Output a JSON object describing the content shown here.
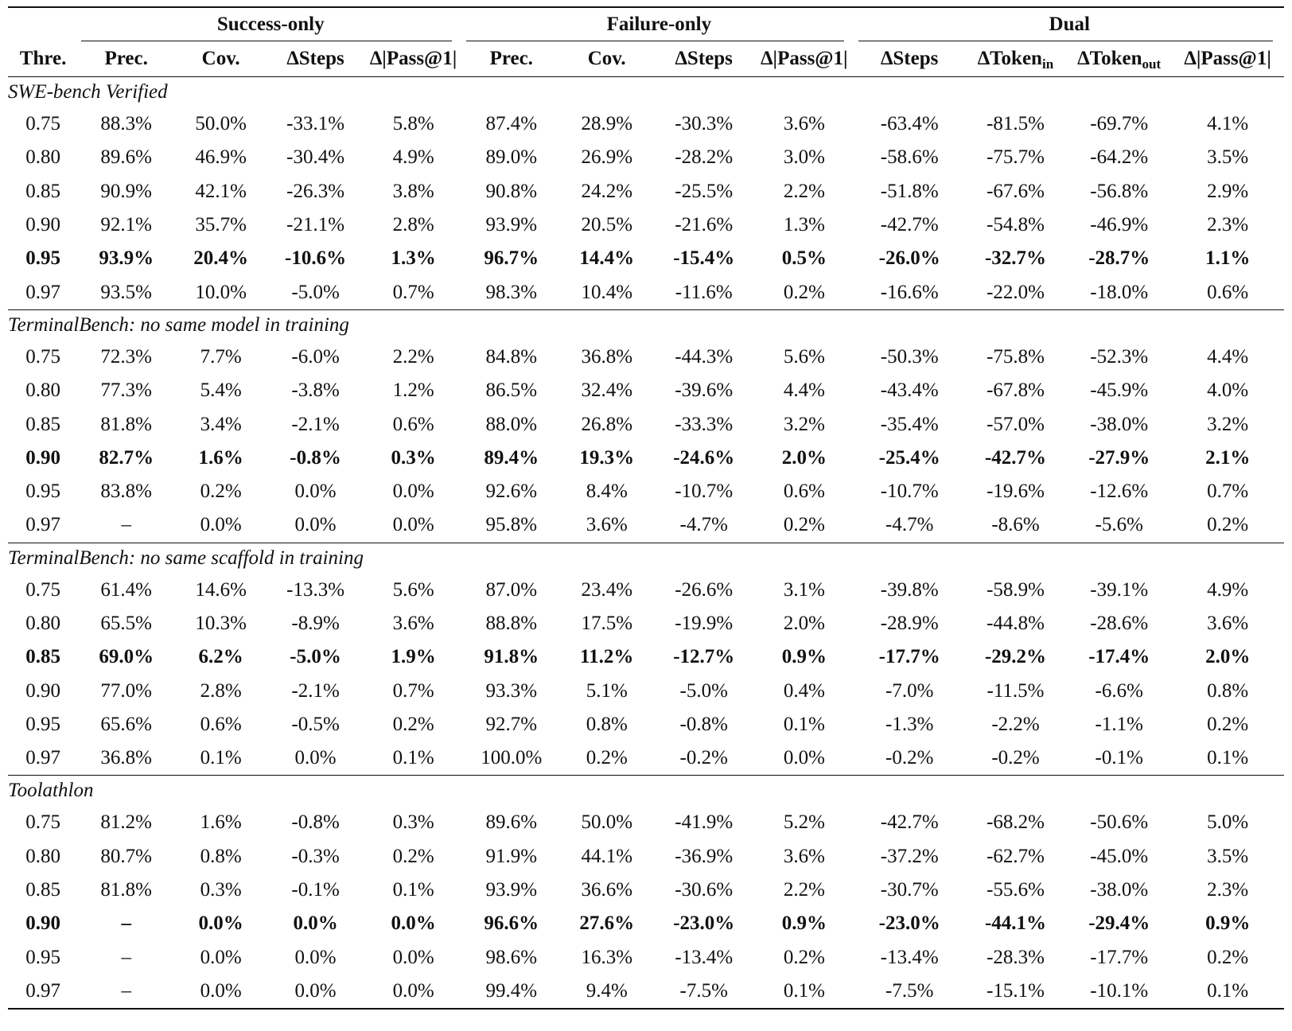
{
  "groups": [
    "Success-only",
    "Failure-only",
    "Dual"
  ],
  "columns": {
    "thre": "Thre.",
    "s_prec": "Prec.",
    "s_cov": "Cov.",
    "s_steps": "∆Steps",
    "s_pass": "∆|Pass@1|",
    "f_prec": "Prec.",
    "f_cov": "Cov.",
    "f_steps": "∆Steps",
    "f_pass": "∆|Pass@1|",
    "d_steps": "∆Steps",
    "d_tin_base": "∆Token",
    "d_tin_sub": "in",
    "d_tout_base": "∆Token",
    "d_tout_sub": "out",
    "d_pass": "∆|Pass@1|"
  },
  "sections": [
    {
      "title": "SWE-bench Verified",
      "rows": [
        [
          "0.75",
          "88.3%",
          "50.0%",
          "-33.1%",
          "5.8%",
          "87.4%",
          "28.9%",
          "-30.3%",
          "3.6%",
          "-63.4%",
          "-81.5%",
          "-69.7%",
          "4.1%"
        ],
        [
          "0.80",
          "89.6%",
          "46.9%",
          "-30.4%",
          "4.9%",
          "89.0%",
          "26.9%",
          "-28.2%",
          "3.0%",
          "-58.6%",
          "-75.7%",
          "-64.2%",
          "3.5%"
        ],
        [
          "0.85",
          "90.9%",
          "42.1%",
          "-26.3%",
          "3.8%",
          "90.8%",
          "24.2%",
          "-25.5%",
          "2.2%",
          "-51.8%",
          "-67.6%",
          "-56.8%",
          "2.9%"
        ],
        [
          "0.90",
          "92.1%",
          "35.7%",
          "-21.1%",
          "2.8%",
          "93.9%",
          "20.5%",
          "-21.6%",
          "1.3%",
          "-42.7%",
          "-54.8%",
          "-46.9%",
          "2.3%"
        ],
        [
          "0.95",
          "93.9%",
          "20.4%",
          "-10.6%",
          "1.3%",
          "96.7%",
          "14.4%",
          "-15.4%",
          "0.5%",
          "-26.0%",
          "-32.7%",
          "-28.7%",
          "1.1%"
        ],
        [
          "0.97",
          "93.5%",
          "10.0%",
          "-5.0%",
          "0.7%",
          "98.3%",
          "10.4%",
          "-11.6%",
          "0.2%",
          "-16.6%",
          "-22.0%",
          "-18.0%",
          "0.6%"
        ]
      ],
      "bold_row": 4
    },
    {
      "title": "TerminalBench: no same model in training",
      "rows": [
        [
          "0.75",
          "72.3%",
          "7.7%",
          "-6.0%",
          "2.2%",
          "84.8%",
          "36.8%",
          "-44.3%",
          "5.6%",
          "-50.3%",
          "-75.8%",
          "-52.3%",
          "4.4%"
        ],
        [
          "0.80",
          "77.3%",
          "5.4%",
          "-3.8%",
          "1.2%",
          "86.5%",
          "32.4%",
          "-39.6%",
          "4.4%",
          "-43.4%",
          "-67.8%",
          "-45.9%",
          "4.0%"
        ],
        [
          "0.85",
          "81.8%",
          "3.4%",
          "-2.1%",
          "0.6%",
          "88.0%",
          "26.8%",
          "-33.3%",
          "3.2%",
          "-35.4%",
          "-57.0%",
          "-38.0%",
          "3.2%"
        ],
        [
          "0.90",
          "82.7%",
          "1.6%",
          "-0.8%",
          "0.3%",
          "89.4%",
          "19.3%",
          "-24.6%",
          "2.0%",
          "-25.4%",
          "-42.7%",
          "-27.9%",
          "2.1%"
        ],
        [
          "0.95",
          "83.8%",
          "0.2%",
          "0.0%",
          "0.0%",
          "92.6%",
          "8.4%",
          "-10.7%",
          "0.6%",
          "-10.7%",
          "-19.6%",
          "-12.6%",
          "0.7%"
        ],
        [
          "0.97",
          "–",
          "0.0%",
          "0.0%",
          "0.0%",
          "95.8%",
          "3.6%",
          "-4.7%",
          "0.2%",
          "-4.7%",
          "-8.6%",
          "-5.6%",
          "0.2%"
        ]
      ],
      "bold_row": 3
    },
    {
      "title": "TerminalBench: no same scaffold in training",
      "rows": [
        [
          "0.75",
          "61.4%",
          "14.6%",
          "-13.3%",
          "5.6%",
          "87.0%",
          "23.4%",
          "-26.6%",
          "3.1%",
          "-39.8%",
          "-58.9%",
          "-39.1%",
          "4.9%"
        ],
        [
          "0.80",
          "65.5%",
          "10.3%",
          "-8.9%",
          "3.6%",
          "88.8%",
          "17.5%",
          "-19.9%",
          "2.0%",
          "-28.9%",
          "-44.8%",
          "-28.6%",
          "3.6%"
        ],
        [
          "0.85",
          "69.0%",
          "6.2%",
          "-5.0%",
          "1.9%",
          "91.8%",
          "11.2%",
          "-12.7%",
          "0.9%",
          "-17.7%",
          "-29.2%",
          "-17.4%",
          "2.0%"
        ],
        [
          "0.90",
          "77.0%",
          "2.8%",
          "-2.1%",
          "0.7%",
          "93.3%",
          "5.1%",
          "-5.0%",
          "0.4%",
          "-7.0%",
          "-11.5%",
          "-6.6%",
          "0.8%"
        ],
        [
          "0.95",
          "65.6%",
          "0.6%",
          "-0.5%",
          "0.2%",
          "92.7%",
          "0.8%",
          "-0.8%",
          "0.1%",
          "-1.3%",
          "-2.2%",
          "-1.1%",
          "0.2%"
        ],
        [
          "0.97",
          "36.8%",
          "0.1%",
          "0.0%",
          "0.1%",
          "100.0%",
          "0.2%",
          "-0.2%",
          "0.0%",
          "-0.2%",
          "-0.2%",
          "-0.1%",
          "0.1%"
        ]
      ],
      "bold_row": 2
    },
    {
      "title": "Toolathlon",
      "rows": [
        [
          "0.75",
          "81.2%",
          "1.6%",
          "-0.8%",
          "0.3%",
          "89.6%",
          "50.0%",
          "-41.9%",
          "5.2%",
          "-42.7%",
          "-68.2%",
          "-50.6%",
          "5.0%"
        ],
        [
          "0.80",
          "80.7%",
          "0.8%",
          "-0.3%",
          "0.2%",
          "91.9%",
          "44.1%",
          "-36.9%",
          "3.6%",
          "-37.2%",
          "-62.7%",
          "-45.0%",
          "3.5%"
        ],
        [
          "0.85",
          "81.8%",
          "0.3%",
          "-0.1%",
          "0.1%",
          "93.9%",
          "36.6%",
          "-30.6%",
          "2.2%",
          "-30.7%",
          "-55.6%",
          "-38.0%",
          "2.3%"
        ],
        [
          "0.90",
          "–",
          "0.0%",
          "0.0%",
          "0.0%",
          "96.6%",
          "27.6%",
          "-23.0%",
          "0.9%",
          "-23.0%",
          "-44.1%",
          "-29.4%",
          "0.9%"
        ],
        [
          "0.95",
          "–",
          "0.0%",
          "0.0%",
          "0.0%",
          "98.6%",
          "16.3%",
          "-13.4%",
          "0.2%",
          "-13.4%",
          "-28.3%",
          "-17.7%",
          "0.2%"
        ],
        [
          "0.97",
          "–",
          "0.0%",
          "0.0%",
          "0.0%",
          "99.4%",
          "9.4%",
          "-7.5%",
          "0.1%",
          "-7.5%",
          "-15.1%",
          "-10.1%",
          "0.1%"
        ]
      ],
      "bold_row": 3
    }
  ]
}
